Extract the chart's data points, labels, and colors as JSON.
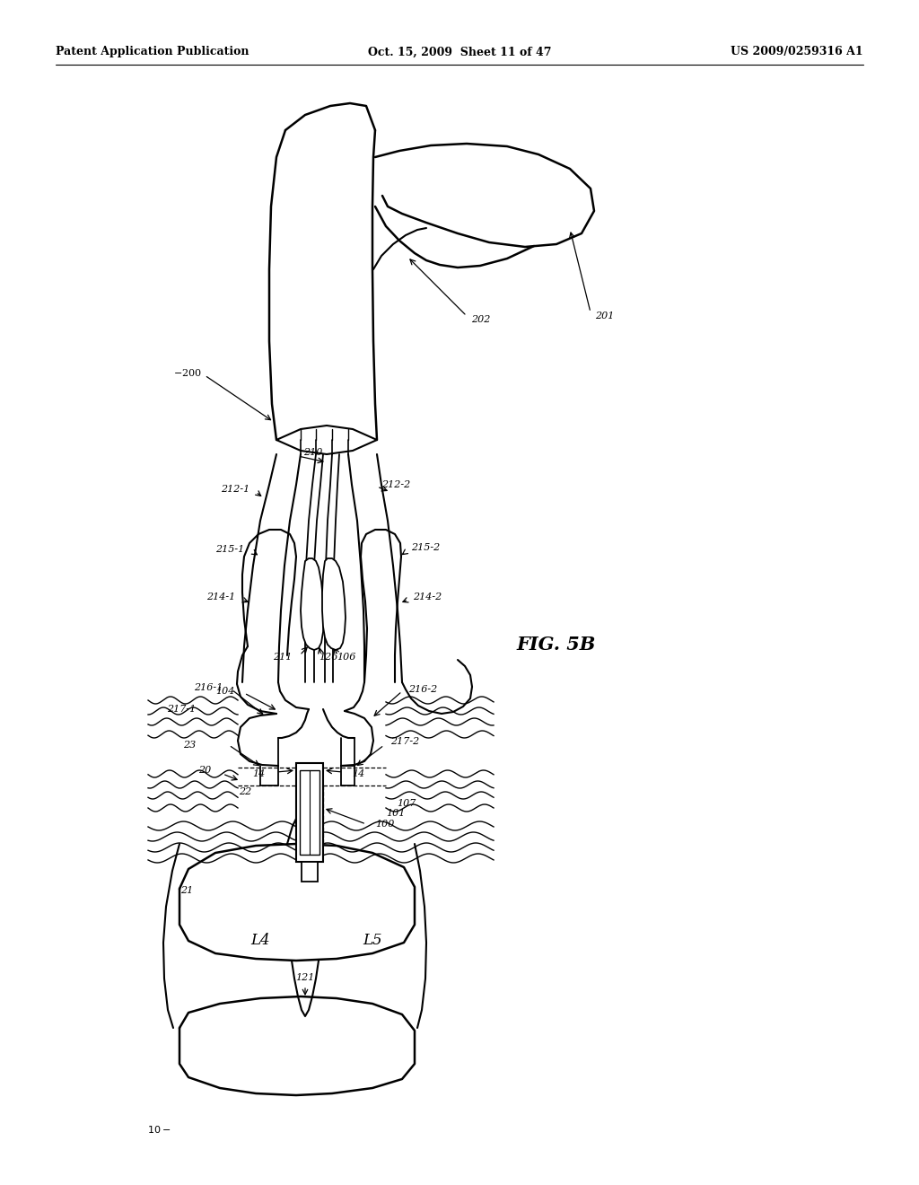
{
  "background_color": "#ffffff",
  "header_left": "Patent Application Publication",
  "header_mid": "Oct. 15, 2009  Sheet 11 of 47",
  "header_right": "US 2009/0259316 A1",
  "fig_label": "FIG. 5B"
}
